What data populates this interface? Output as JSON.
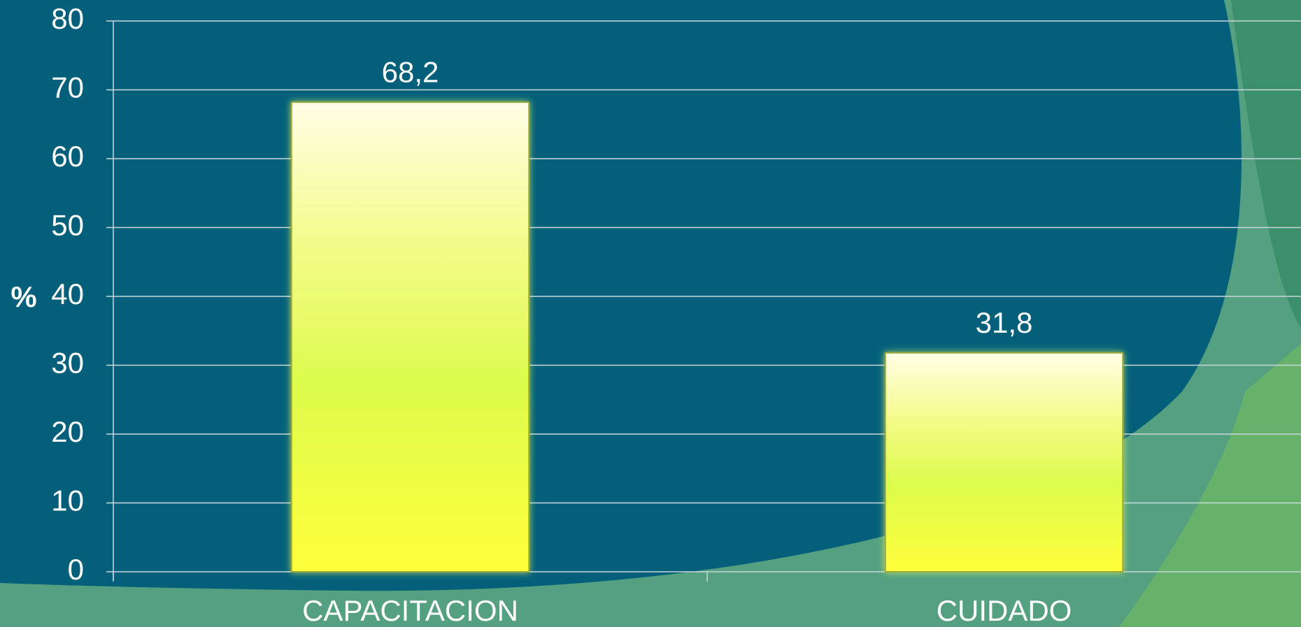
{
  "chart_data": {
    "type": "bar",
    "y_label": "%",
    "categories": [
      "CAPACITACION",
      "CUIDADO"
    ],
    "values": [
      68.2,
      31.8
    ],
    "value_labels": [
      "68,2",
      "31,8"
    ],
    "ylim": [
      0,
      80
    ],
    "yticks": [
      0,
      10,
      20,
      30,
      40,
      50,
      60,
      70,
      80
    ],
    "grid": true
  }
}
